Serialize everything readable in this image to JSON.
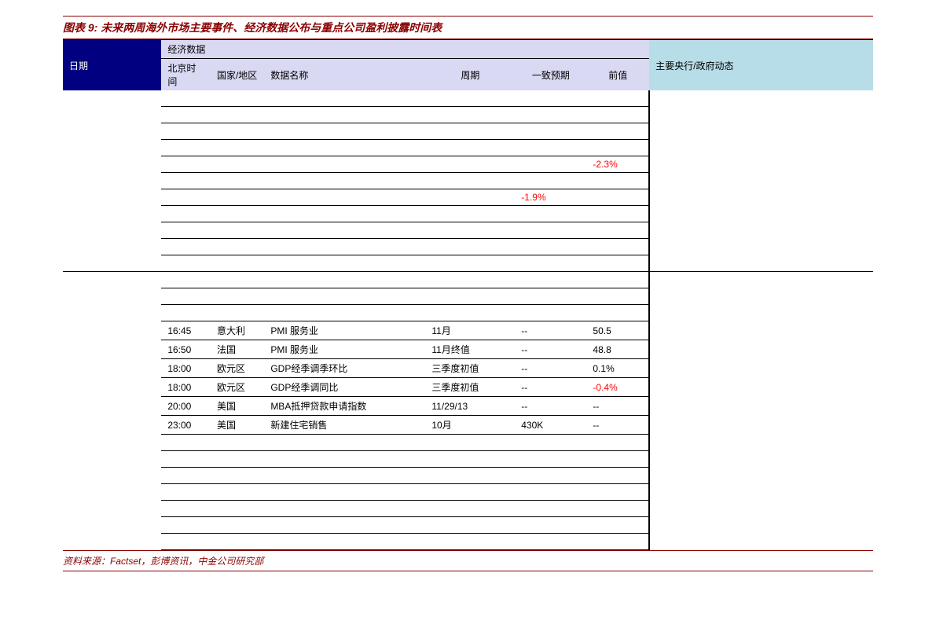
{
  "title": "图表 9: 未来两周海外市场主要事件、经济数据公布与重点公司盈利披露时间表",
  "source": "资料来源：Factset，彭博资讯，中金公司研究部",
  "headers": {
    "date": "日期",
    "econ_top": "经济数据",
    "time": "北京时间",
    "country": "国家/地区",
    "name": "数据名称",
    "period": "周期",
    "forecast": "一致预期",
    "prev": "前值",
    "gov": "主要央行/政府动态"
  },
  "colors": {
    "brand": "#8b0000",
    "date_bg": "#000080",
    "econ_bg": "#d9d9f3",
    "gov_bg": "#b7dde8",
    "negative": "#ff0000"
  },
  "rows": [
    {
      "time": "",
      "country": "",
      "name": "",
      "period": "",
      "forecast": "",
      "prev": ""
    },
    {
      "time": "",
      "country": "",
      "name": "",
      "period": "",
      "forecast": "",
      "prev": ""
    },
    {
      "time": "",
      "country": "",
      "name": "",
      "period": "",
      "forecast": "",
      "prev": ""
    },
    {
      "time": "",
      "country": "",
      "name": "",
      "period": "",
      "forecast": "",
      "prev": ""
    },
    {
      "time": "",
      "country": "",
      "name": "",
      "period": "",
      "forecast": "",
      "prev": "-2.3%",
      "neg": true
    },
    {
      "time": "",
      "country": "",
      "name": "",
      "period": "",
      "forecast": "",
      "prev": ""
    },
    {
      "time": "",
      "country": "",
      "name": "",
      "period": "",
      "forecast": "-1.9%",
      "prev": "",
      "fneg": true
    },
    {
      "time": "",
      "country": "",
      "name": "",
      "period": "",
      "forecast": "",
      "prev": ""
    },
    {
      "time": "",
      "country": "",
      "name": "",
      "period": "",
      "forecast": "",
      "prev": ""
    },
    {
      "time": "",
      "country": "",
      "name": "",
      "period": "",
      "forecast": "",
      "prev": ""
    },
    {
      "time": "",
      "country": "",
      "name": "",
      "period": "",
      "forecast": "",
      "prev": ""
    },
    {
      "time": "",
      "country": "",
      "name": "",
      "period": "",
      "forecast": "",
      "prev": "",
      "break": true
    },
    {
      "time": "",
      "country": "",
      "name": "",
      "period": "",
      "forecast": "",
      "prev": ""
    },
    {
      "time": "",
      "country": "",
      "name": "",
      "period": "",
      "forecast": "",
      "prev": ""
    },
    {
      "time": "16:45",
      "country": "意大利",
      "name": "PMI 服务业",
      "period": "11月",
      "forecast": "--",
      "prev": "50.5"
    },
    {
      "time": "16:50",
      "country": "法国",
      "name": "PMI 服务业",
      "period": "11月终值",
      "forecast": "--",
      "prev": "48.8"
    },
    {
      "time": "18:00",
      "country": "欧元区",
      "name": "GDP经季调季环比",
      "period": "三季度初值",
      "forecast": "--",
      "prev": "0.1%"
    },
    {
      "time": "18:00",
      "country": "欧元区",
      "name": "GDP经季调同比",
      "period": "三季度初值",
      "forecast": "--",
      "prev": "-0.4%",
      "neg": true
    },
    {
      "time": "20:00",
      "country": "美国",
      "name": "MBA抵押贷款申请指数",
      "period": "11/29/13",
      "forecast": "--",
      "prev": "--"
    },
    {
      "time": "23:00",
      "country": "美国",
      "name": "新建住宅销售",
      "period": "10月",
      "forecast": "430K",
      "prev": "--"
    },
    {
      "time": "",
      "country": "",
      "name": "",
      "period": "",
      "forecast": "",
      "prev": ""
    },
    {
      "time": "",
      "country": "",
      "name": "",
      "period": "",
      "forecast": "",
      "prev": ""
    },
    {
      "time": "",
      "country": "",
      "name": "",
      "period": "",
      "forecast": "",
      "prev": ""
    },
    {
      "time": "",
      "country": "",
      "name": "",
      "period": "",
      "forecast": "",
      "prev": ""
    },
    {
      "time": "",
      "country": "",
      "name": "",
      "period": "",
      "forecast": "",
      "prev": ""
    },
    {
      "time": "",
      "country": "",
      "name": "",
      "period": "",
      "forecast": "",
      "prev": ""
    },
    {
      "time": "",
      "country": "",
      "name": "",
      "period": "",
      "forecast": "",
      "prev": ""
    }
  ]
}
